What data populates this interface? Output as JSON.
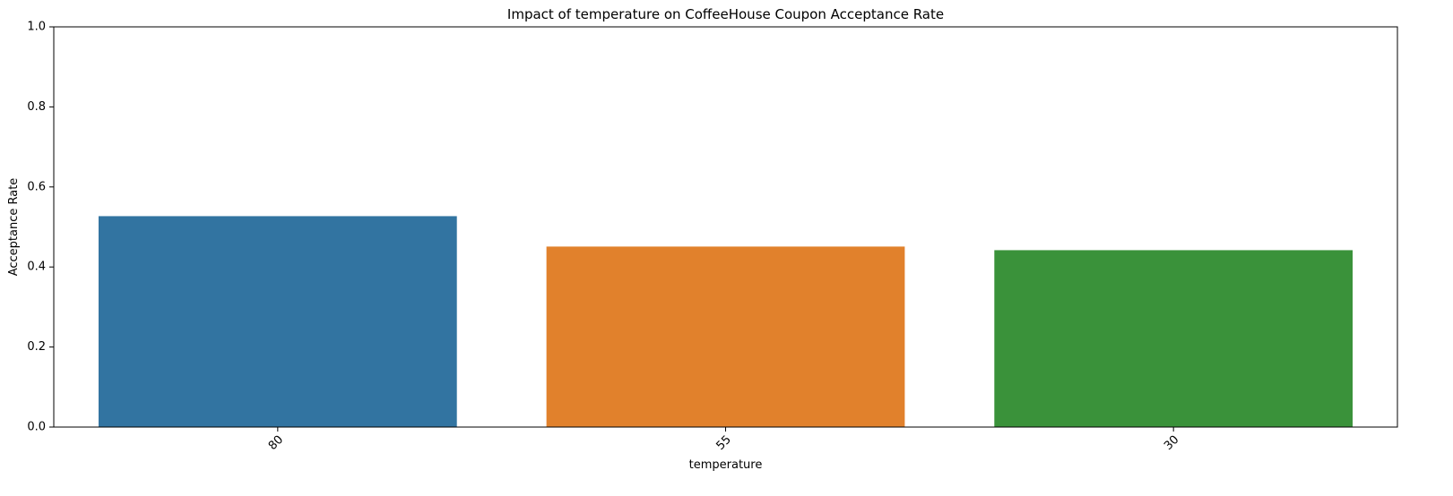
{
  "chart_data": {
    "type": "bar",
    "title": "Impact of temperature on CoffeeHouse Coupon Acceptance Rate",
    "xlabel": "temperature",
    "ylabel": "Acceptance Rate",
    "categories": [
      "80",
      "55",
      "30"
    ],
    "values": [
      0.527,
      0.451,
      0.442
    ],
    "colors": [
      "#3274a1",
      "#e1812c",
      "#3a923a"
    ],
    "ylim": [
      0,
      1
    ],
    "yticks": [
      0.0,
      0.2,
      0.4,
      0.6,
      0.8,
      1.0
    ],
    "ytick_labels": [
      "0.0",
      "0.2",
      "0.4",
      "0.6",
      "0.8",
      "1.0"
    ],
    "xtick_rotation": "45",
    "grid": false,
    "legend": "none"
  }
}
